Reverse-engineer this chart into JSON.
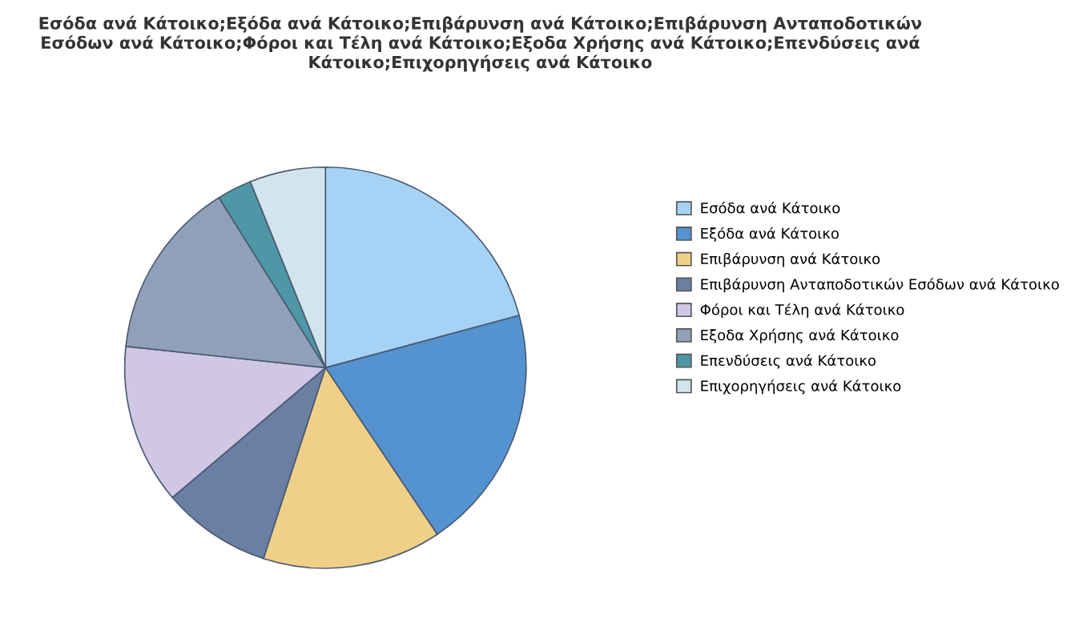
{
  "chart_data": {
    "type": "pie",
    "title": "Εσόδα ανά Κάτοικο;Εξόδα ανά Κάτοικο;Επιβάρυνση ανά Κάτοικο;Επιβάρυνση Ανταποδοτικών Εσόδων ανά Κάτοικο;Φόροι και Τέλη ανά Κάτοικο;Εξοδα Χρήσης ανά Κάτοικο;Επενδύσεις ανά Κάτοικο;Επιχορηγήσεις ανά Κάτοικο",
    "categories": [
      "Εσόδα ανά Κάτοικο",
      "Εξόδα ανά Κάτοικο",
      "Επιβάρυνση ανά Κάτοικο",
      "Επιβάρυνση Ανταποδοτικών Εσόδων ανά Κάτοικο",
      "Φόροι και Τέλη ανά Κάτοικο",
      "Εξοδα Χρήσης ανά Κάτοικο",
      "Επενδύσεις ανά Κάτοικο",
      "Επιχορηγήσεις ανά Κάτοικο"
    ],
    "values": [
      20.8,
      19.8,
      14.4,
      8.8,
      12.9,
      14.4,
      2.8,
      6.1
    ],
    "colors": [
      "#a6d3f5",
      "#5592d0",
      "#f0d088",
      "#6b7fa3",
      "#d0c6e6",
      "#8fa0b8",
      "#4e97a6",
      "#d3e5ec"
    ],
    "legend": "right"
  }
}
